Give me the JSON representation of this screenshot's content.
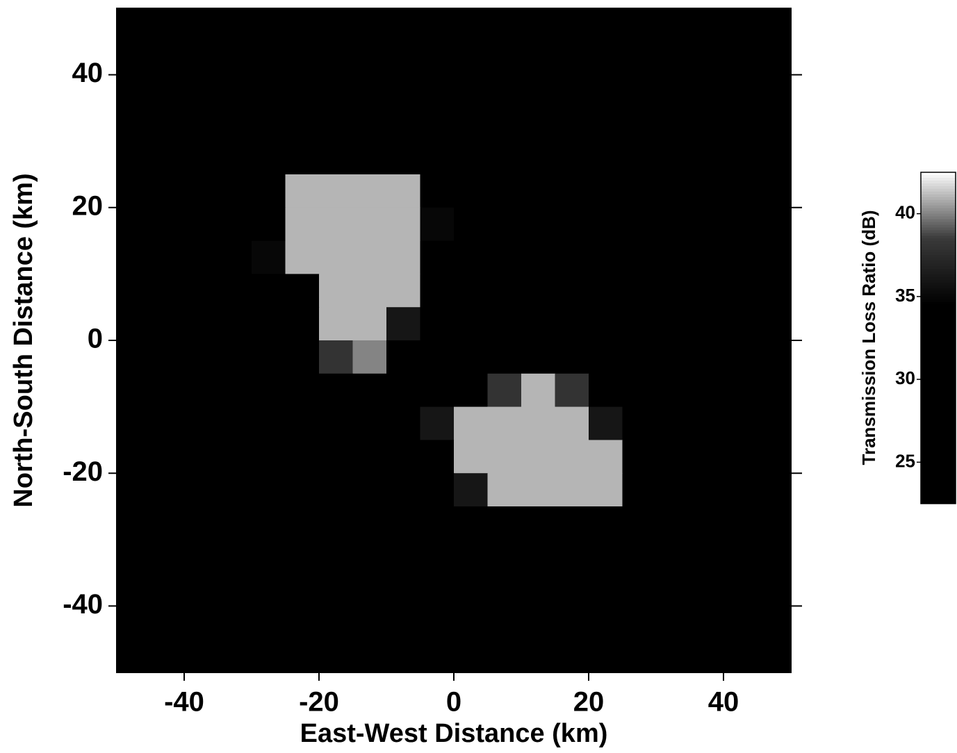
{
  "chart_data": {
    "type": "heatmap",
    "xlabel": "East-West Distance (km)",
    "ylabel": "North-South Distance (km)",
    "colorbar_label": "Transmission Loss Ratio (dB)",
    "xlim": [
      -50,
      50
    ],
    "ylim": [
      -50,
      50
    ],
    "xticks": [
      -40,
      -20,
      0,
      20,
      40
    ],
    "yticks": [
      -40,
      -20,
      0,
      20,
      40
    ],
    "clim": [
      22.5,
      42.5
    ],
    "cticks": [
      25,
      30,
      35,
      40
    ],
    "colormap": [
      "#000000",
      "#000000",
      "#000000",
      "#000000",
      "#3a3a3a",
      "#ffffff"
    ],
    "x": [
      -47.5,
      -42.5,
      -37.5,
      -32.5,
      -27.5,
      -22.5,
      -17.5,
      -12.5,
      -7.5,
      -2.5,
      2.5,
      7.5,
      12.5,
      17.5,
      22.5,
      27.5,
      32.5,
      37.5,
      42.5,
      47.5
    ],
    "y": [
      47.5,
      42.5,
      37.5,
      32.5,
      27.5,
      22.5,
      17.5,
      12.5,
      7.5,
      2.5,
      -2.5,
      -7.5,
      -12.5,
      -17.5,
      -22.5,
      -27.5,
      -32.5,
      -37.5,
      -42.5,
      -47.5
    ],
    "z": [
      [
        24,
        24,
        24,
        24,
        24,
        24,
        24,
        24,
        24,
        24,
        24,
        24,
        24,
        24,
        24,
        24,
        24,
        24,
        24,
        24
      ],
      [
        24,
        24,
        24,
        24,
        24,
        24,
        24,
        24,
        24,
        24,
        24,
        24,
        24,
        24,
        24,
        24,
        24,
        24,
        24,
        24
      ],
      [
        24,
        24,
        24,
        24,
        24,
        24,
        24,
        24,
        24,
        24,
        24,
        24,
        24,
        24,
        24,
        24,
        24,
        24,
        24,
        24
      ],
      [
        24,
        24,
        24,
        24,
        24,
        24,
        24,
        24,
        24,
        24,
        24,
        24,
        24,
        24,
        24,
        24,
        24,
        24,
        24,
        24
      ],
      [
        24,
        24,
        24,
        24,
        24,
        24,
        24,
        24,
        24,
        24,
        24,
        24,
        24,
        24,
        24,
        24,
        24,
        24,
        24,
        24
      ],
      [
        24,
        24,
        24,
        24,
        24,
        41,
        41,
        41,
        41,
        24,
        24,
        24,
        24,
        24,
        24,
        24,
        24,
        24,
        24,
        24
      ],
      [
        24,
        24,
        24,
        24,
        33,
        41,
        41,
        41,
        41,
        35,
        24,
        24,
        24,
        24,
        24,
        24,
        24,
        24,
        24,
        24
      ],
      [
        24,
        24,
        24,
        24,
        35,
        41,
        41,
        41,
        41,
        33,
        24,
        24,
        24,
        24,
        24,
        24,
        24,
        24,
        24,
        24
      ],
      [
        24,
        24,
        24,
        24,
        24,
        33,
        41,
        41,
        41,
        24,
        24,
        24,
        24,
        24,
        24,
        24,
        24,
        24,
        24,
        24
      ],
      [
        24,
        24,
        24,
        24,
        24,
        30,
        41,
        41,
        36,
        24,
        24,
        24,
        24,
        24,
        24,
        24,
        24,
        24,
        24,
        24
      ],
      [
        24,
        24,
        24,
        24,
        24,
        30,
        38,
        40,
        33,
        24,
        24,
        24,
        24,
        24,
        24,
        24,
        24,
        24,
        24,
        24
      ],
      [
        24,
        24,
        24,
        24,
        24,
        24,
        24,
        28,
        24,
        24,
        30,
        38,
        41,
        38,
        24,
        24,
        24,
        24,
        24,
        24
      ],
      [
        24,
        24,
        24,
        24,
        24,
        24,
        24,
        24,
        30,
        36,
        41,
        41,
        41,
        41,
        36,
        24,
        24,
        24,
        24,
        24
      ],
      [
        24,
        24,
        24,
        24,
        24,
        24,
        24,
        24,
        24,
        30,
        41,
        41,
        41,
        41,
        41,
        24,
        24,
        24,
        24,
        24
      ],
      [
        24,
        24,
        24,
        24,
        24,
        24,
        24,
        24,
        24,
        24,
        36,
        41,
        41,
        41,
        41,
        28,
        24,
        24,
        24,
        24
      ],
      [
        24,
        24,
        24,
        24,
        24,
        24,
        24,
        24,
        24,
        24,
        24,
        33,
        33,
        24,
        24,
        24,
        24,
        24,
        24,
        24
      ],
      [
        24,
        24,
        24,
        24,
        24,
        24,
        24,
        24,
        24,
        24,
        24,
        24,
        24,
        24,
        24,
        24,
        24,
        24,
        24,
        24
      ],
      [
        24,
        24,
        24,
        24,
        24,
        24,
        24,
        24,
        24,
        24,
        24,
        24,
        24,
        24,
        24,
        24,
        24,
        24,
        24,
        24
      ],
      [
        24,
        24,
        24,
        24,
        24,
        24,
        24,
        24,
        24,
        24,
        24,
        24,
        24,
        24,
        24,
        24,
        24,
        24,
        24,
        24
      ],
      [
        24,
        24,
        24,
        24,
        24,
        24,
        24,
        24,
        24,
        24,
        24,
        24,
        24,
        24,
        24,
        24,
        24,
        24,
        24,
        24
      ]
    ]
  }
}
